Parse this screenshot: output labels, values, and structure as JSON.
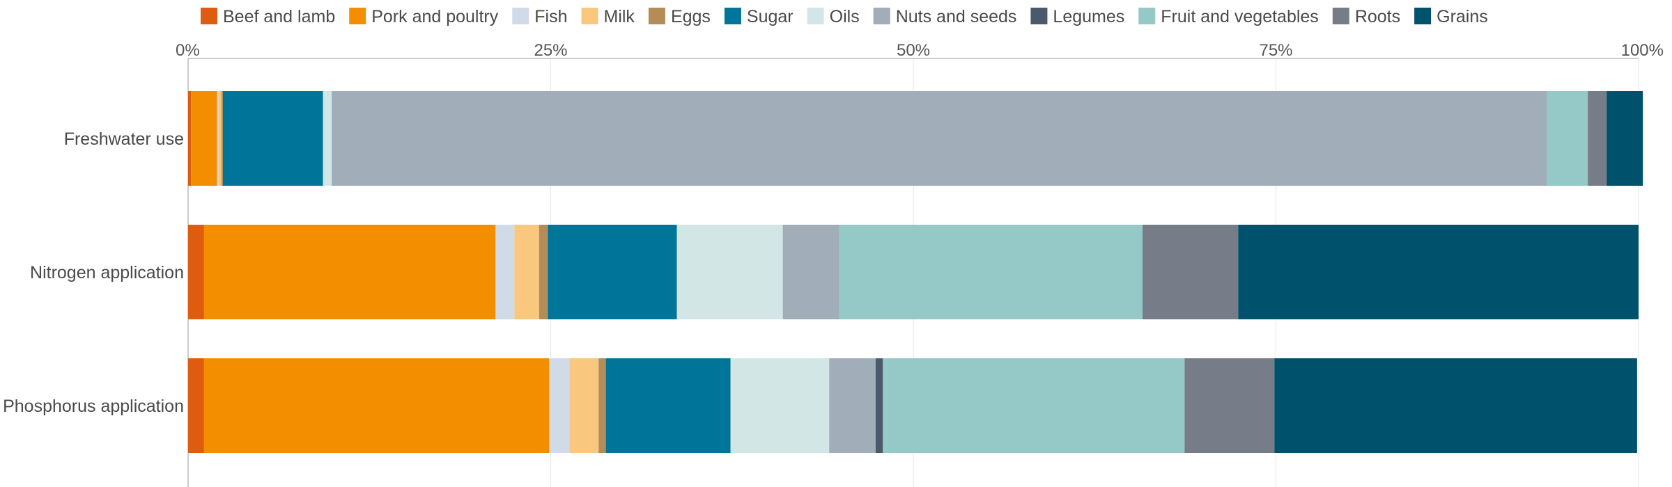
{
  "chart_data": {
    "type": "bar",
    "orientation": "horizontal",
    "stacked": true,
    "normalized_percent": true,
    "xlim": [
      0,
      100
    ],
    "x_ticks": [
      "0%",
      "25%",
      "50%",
      "75%",
      "100%"
    ],
    "categories": [
      "Freshwater use",
      "Nitrogen application",
      "Phosphorus application"
    ],
    "legend_position": "top",
    "grid": true,
    "series": [
      {
        "name": "Beef and lamb",
        "color": "#dd5c10",
        "values": [
          0.2,
          1.1,
          1.1
        ]
      },
      {
        "name": "Pork and poultry",
        "color": "#f28e00",
        "values": [
          1.8,
          20.1,
          23.8
        ]
      },
      {
        "name": "Fish",
        "color": "#d1dbe8",
        "values": [
          0.1,
          1.3,
          1.4
        ]
      },
      {
        "name": "Milk",
        "color": "#f9c87e",
        "values": [
          0.2,
          1.7,
          2.0
        ]
      },
      {
        "name": "Eggs",
        "color": "#b38c57",
        "values": [
          0.1,
          0.6,
          0.5
        ]
      },
      {
        "name": "Sugar",
        "color": "#00759a",
        "values": [
          6.9,
          8.9,
          8.6
        ]
      },
      {
        "name": "Oils",
        "color": "#d2e6e5",
        "values": [
          0.6,
          7.3,
          6.8
        ]
      },
      {
        "name": "Nuts and seeds",
        "color": "#a1adb8",
        "values": [
          83.8,
          3.9,
          3.2
        ]
      },
      {
        "name": "Legumes",
        "color": "#4a5a6b",
        "values": [
          0.0,
          0.0,
          0.5
        ]
      },
      {
        "name": "Fruit and vegetables",
        "color": "#94c9c8",
        "values": [
          2.8,
          20.9,
          20.8
        ]
      },
      {
        "name": "Roots",
        "color": "#767d88",
        "values": [
          1.3,
          6.6,
          6.2
        ]
      },
      {
        "name": "Grains",
        "color": "#00516b",
        "values": [
          2.5,
          27.6,
          25.0
        ]
      }
    ]
  }
}
